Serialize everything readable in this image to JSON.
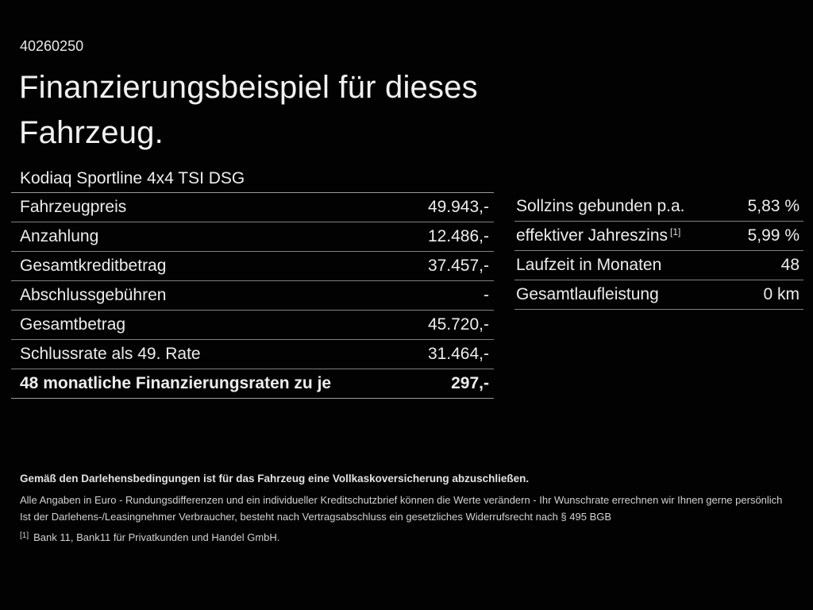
{
  "page": {
    "ref_number": "40260250",
    "title_line1": "Finanzierungsbeispiel für dieses",
    "title_line2": "Fahrzeug.",
    "vehicle_name": "Kodiaq Sportline 4x4 TSI DSG"
  },
  "finance_table": {
    "rows": [
      {
        "label": "Fahrzeugpreis",
        "value": "49.943,-",
        "bold": false
      },
      {
        "label": "Anzahlung",
        "value": "12.486,-",
        "bold": false
      },
      {
        "label": "Gesamtkreditbetrag",
        "value": "37.457,-",
        "bold": false
      },
      {
        "label": "Abschlussgebühren",
        "value": "-",
        "bold": false
      },
      {
        "label": "Gesamtbetrag",
        "value": "45.720,-",
        "bold": false
      },
      {
        "label": "Schlussrate als 49. Rate",
        "value": "31.464,-",
        "bold": false
      },
      {
        "label": "48 monatliche Finanzierungsraten zu je",
        "value": "297,-",
        "bold": true
      }
    ]
  },
  "conditions_table": {
    "rows": [
      {
        "label": "Sollzins gebunden p.a.",
        "value": "5,83 %",
        "bold": false
      },
      {
        "label": "effektiver Jahreszins",
        "footnote": "[1]",
        "value": "5,99 %",
        "bold": false
      },
      {
        "label": "Laufzeit in Monaten",
        "value": "48",
        "bold": false
      },
      {
        "label": "Gesamtlaufleistung",
        "value": "0 km",
        "bold": false
      }
    ]
  },
  "disclaimer": {
    "line1": "Gemäß den Darlehensbedingungen ist für das Fahrzeug eine Vollkaskoversicherung abzuschließen.",
    "line2": "Alle Angaben in Euro - Rundungsdifferenzen und ein individueller Kreditschutzbrief können die Werte verändern - Ihr Wunschrate errechnen wir Ihnen gerne persönlich",
    "line3": "Ist der Darlehens-/Leasingnehmer Verbraucher, besteht nach Vertragsabschluss ein gesetzliches Widerrufsrecht nach § 495 BGB",
    "footnote_marker": "[1]",
    "footnote_text": "Bank 11, Bank11 für Privatkunden und Handel GmbH."
  },
  "colors": {
    "background": "#020202",
    "text": "#ececec",
    "divider": "#818181",
    "divider_strong": "#9a9a9a",
    "fine_print": "#d2d2d2"
  }
}
